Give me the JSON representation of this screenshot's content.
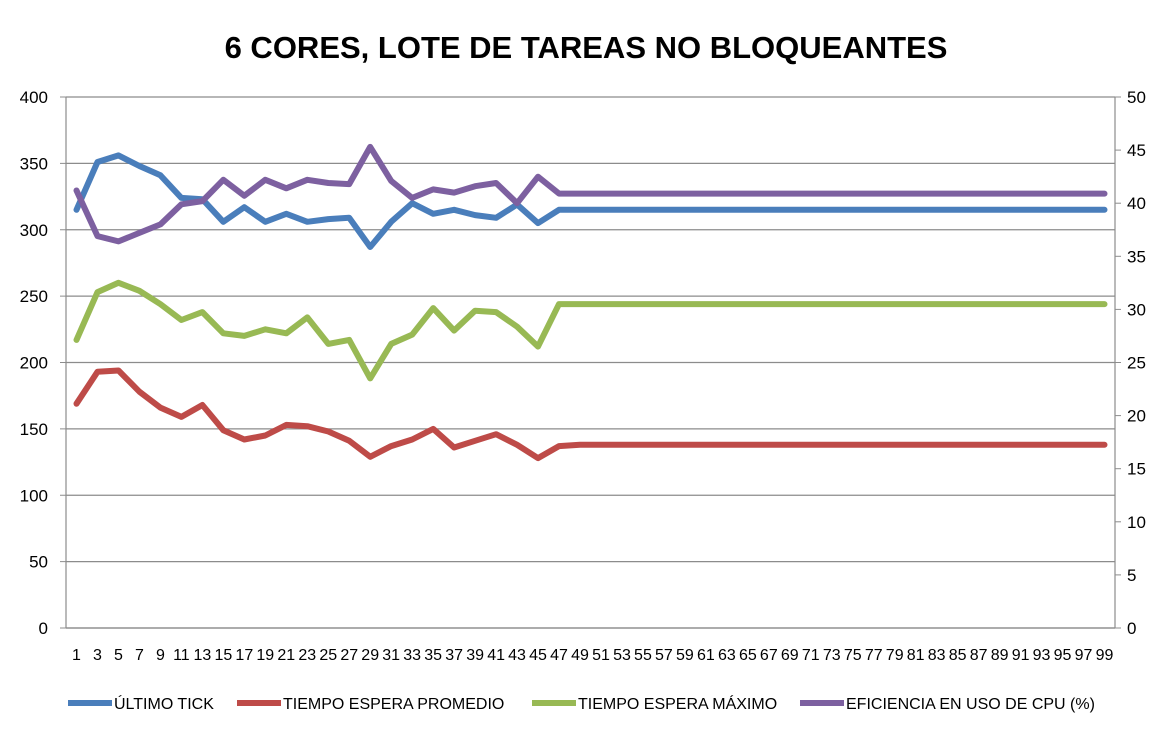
{
  "chart_data": {
    "type": "line",
    "title": "6 CORES, LOTE DE TAREAS NO BLOQUEANTES",
    "xlabel": "",
    "ylabel": "",
    "x": [
      1,
      3,
      5,
      7,
      9,
      11,
      13,
      15,
      17,
      19,
      21,
      23,
      25,
      27,
      29,
      31,
      33,
      35,
      37,
      39,
      41,
      43,
      45,
      47,
      49,
      51,
      53,
      55,
      57,
      59,
      61,
      63,
      65,
      67,
      69,
      71,
      73,
      75,
      77,
      79,
      81,
      83,
      85,
      87,
      89,
      91,
      93,
      95,
      97,
      99
    ],
    "x_tick_labels": [
      "1",
      "3",
      "5",
      "7",
      "9",
      "11",
      "13",
      "15",
      "17",
      "19",
      "21",
      "23",
      "25",
      "27",
      "29",
      "31",
      "33",
      "35",
      "37",
      "39",
      "41",
      "43",
      "45",
      "47",
      "49",
      "51",
      "53",
      "55",
      "57",
      "59",
      "61",
      "63",
      "65",
      "67",
      "69",
      "71",
      "73",
      "75",
      "77",
      "79",
      "81",
      "83",
      "85",
      "87",
      "89",
      "91",
      "93",
      "95",
      "97",
      "99"
    ],
    "y_left": {
      "range": [
        0,
        400
      ],
      "ticks": [
        0,
        50,
        100,
        150,
        200,
        250,
        300,
        350,
        400
      ]
    },
    "y_right": {
      "range": [
        0,
        50
      ],
      "ticks": [
        0,
        5,
        10,
        15,
        20,
        25,
        30,
        35,
        40,
        45,
        50
      ]
    },
    "grid": true,
    "legend_position": "bottom",
    "series": [
      {
        "name": "ÚLTIMO TICK",
        "color": "#4a7ebb",
        "axis": "left",
        "values": [
          315,
          351,
          356,
          348,
          341,
          324,
          323,
          306,
          317,
          306,
          312,
          306,
          308,
          309,
          287,
          306,
          320,
          312,
          315,
          311,
          309,
          319,
          305,
          315,
          315,
          315,
          315,
          315,
          315,
          315,
          315,
          315,
          315,
          315,
          315,
          315,
          315,
          315,
          315,
          315,
          315,
          315,
          315,
          315,
          315,
          315,
          315,
          315,
          315,
          315
        ]
      },
      {
        "name": "TIEMPO ESPERA PROMEDIO",
        "color": "#be4b48",
        "axis": "left",
        "values": [
          169,
          193,
          194,
          178,
          166,
          159,
          168,
          149,
          142,
          145,
          153,
          152,
          148,
          141,
          129,
          137,
          142,
          150,
          136,
          141,
          146,
          138,
          128,
          137,
          138,
          138,
          138,
          138,
          138,
          138,
          138,
          138,
          138,
          138,
          138,
          138,
          138,
          138,
          138,
          138,
          138,
          138,
          138,
          138,
          138,
          138,
          138,
          138,
          138,
          138
        ]
      },
      {
        "name": "TIEMPO ESPERA MÁXIMO",
        "color": "#98b954",
        "axis": "left",
        "values": [
          217,
          253,
          260,
          254,
          244,
          232,
          238,
          222,
          220,
          225,
          222,
          234,
          214,
          217,
          188,
          214,
          221,
          241,
          224,
          239,
          238,
          227,
          212,
          244,
          244,
          244,
          244,
          244,
          244,
          244,
          244,
          244,
          244,
          244,
          244,
          244,
          244,
          244,
          244,
          244,
          244,
          244,
          244,
          244,
          244,
          244,
          244,
          244,
          244,
          244
        ]
      },
      {
        "name": "EFICIENCIA EN USO DE CPU (%)",
        "color": "#7d60a0",
        "axis": "right",
        "values": [
          41.2,
          36.9,
          36.4,
          37.2,
          38.0,
          39.9,
          40.2,
          42.2,
          40.7,
          42.2,
          41.4,
          42.2,
          41.9,
          41.8,
          45.3,
          42.1,
          40.5,
          41.3,
          41.0,
          41.6,
          41.9,
          40.0,
          42.5,
          40.9,
          40.9,
          40.9,
          40.9,
          40.9,
          40.9,
          40.9,
          40.9,
          40.9,
          40.9,
          40.9,
          40.9,
          40.9,
          40.9,
          40.9,
          40.9,
          40.9,
          40.9,
          40.9,
          40.9,
          40.9,
          40.9,
          40.9,
          40.9,
          40.9,
          40.9,
          40.9
        ]
      }
    ]
  }
}
